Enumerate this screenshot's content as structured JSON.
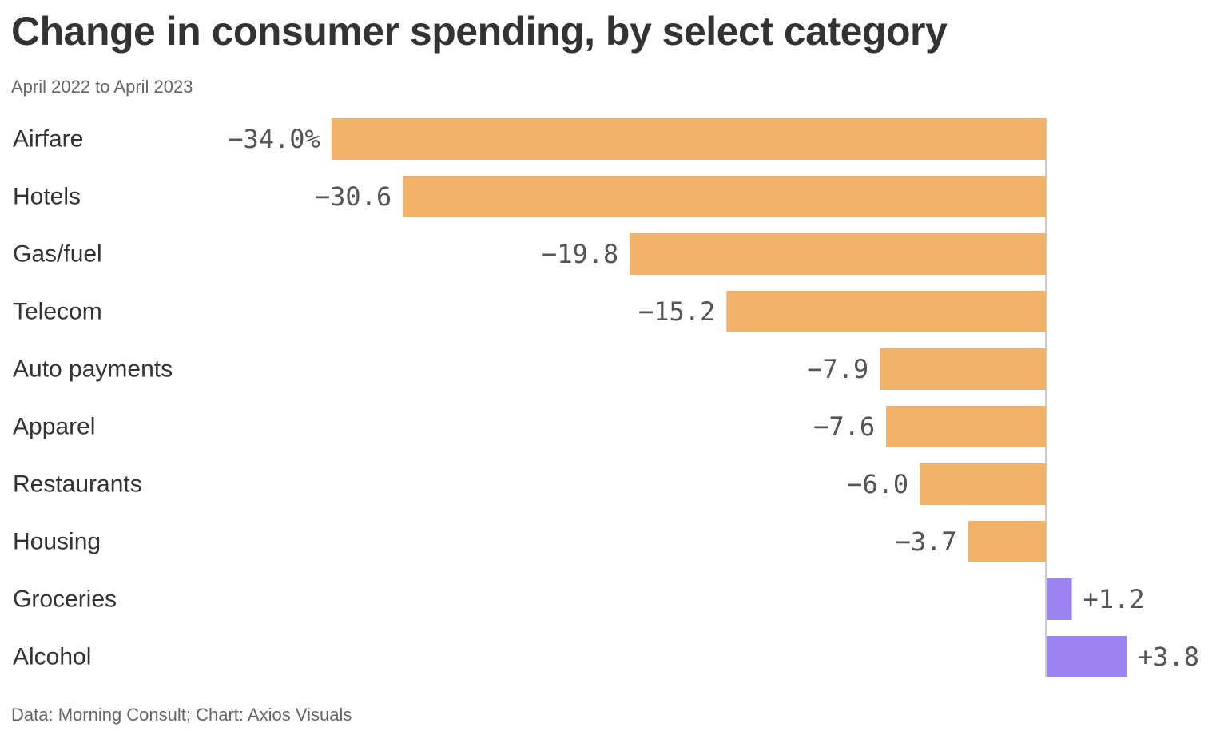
{
  "chart_data": {
    "type": "bar",
    "orientation": "horizontal",
    "title": "Change in consumer spending, by select category",
    "subtitle": "April 2022 to April 2023",
    "source": "Data: Morning Consult; Chart: Axios Visuals",
    "categories": [
      "Airfare",
      "Hotels",
      "Gas/fuel",
      "Telecom",
      "Auto payments",
      "Apparel",
      "Restaurants",
      "Housing",
      "Groceries",
      "Alcohol"
    ],
    "values": [
      -34.0,
      -30.6,
      -19.8,
      -15.2,
      -7.9,
      -7.6,
      -6.0,
      -3.7,
      1.2,
      3.8
    ],
    "value_labels": [
      "−34.0%",
      "−30.6",
      "−19.8",
      "−15.2",
      "−7.9",
      "−7.6",
      "−6.0",
      "−3.7",
      "+1.2",
      "+3.8"
    ],
    "xlim": [
      -34.0,
      3.8
    ],
    "grid": false,
    "legend": "none",
    "colors": {
      "negative": "#f1b26c",
      "positive": "#9b83f2",
      "zero_line": "#cccccc"
    }
  }
}
